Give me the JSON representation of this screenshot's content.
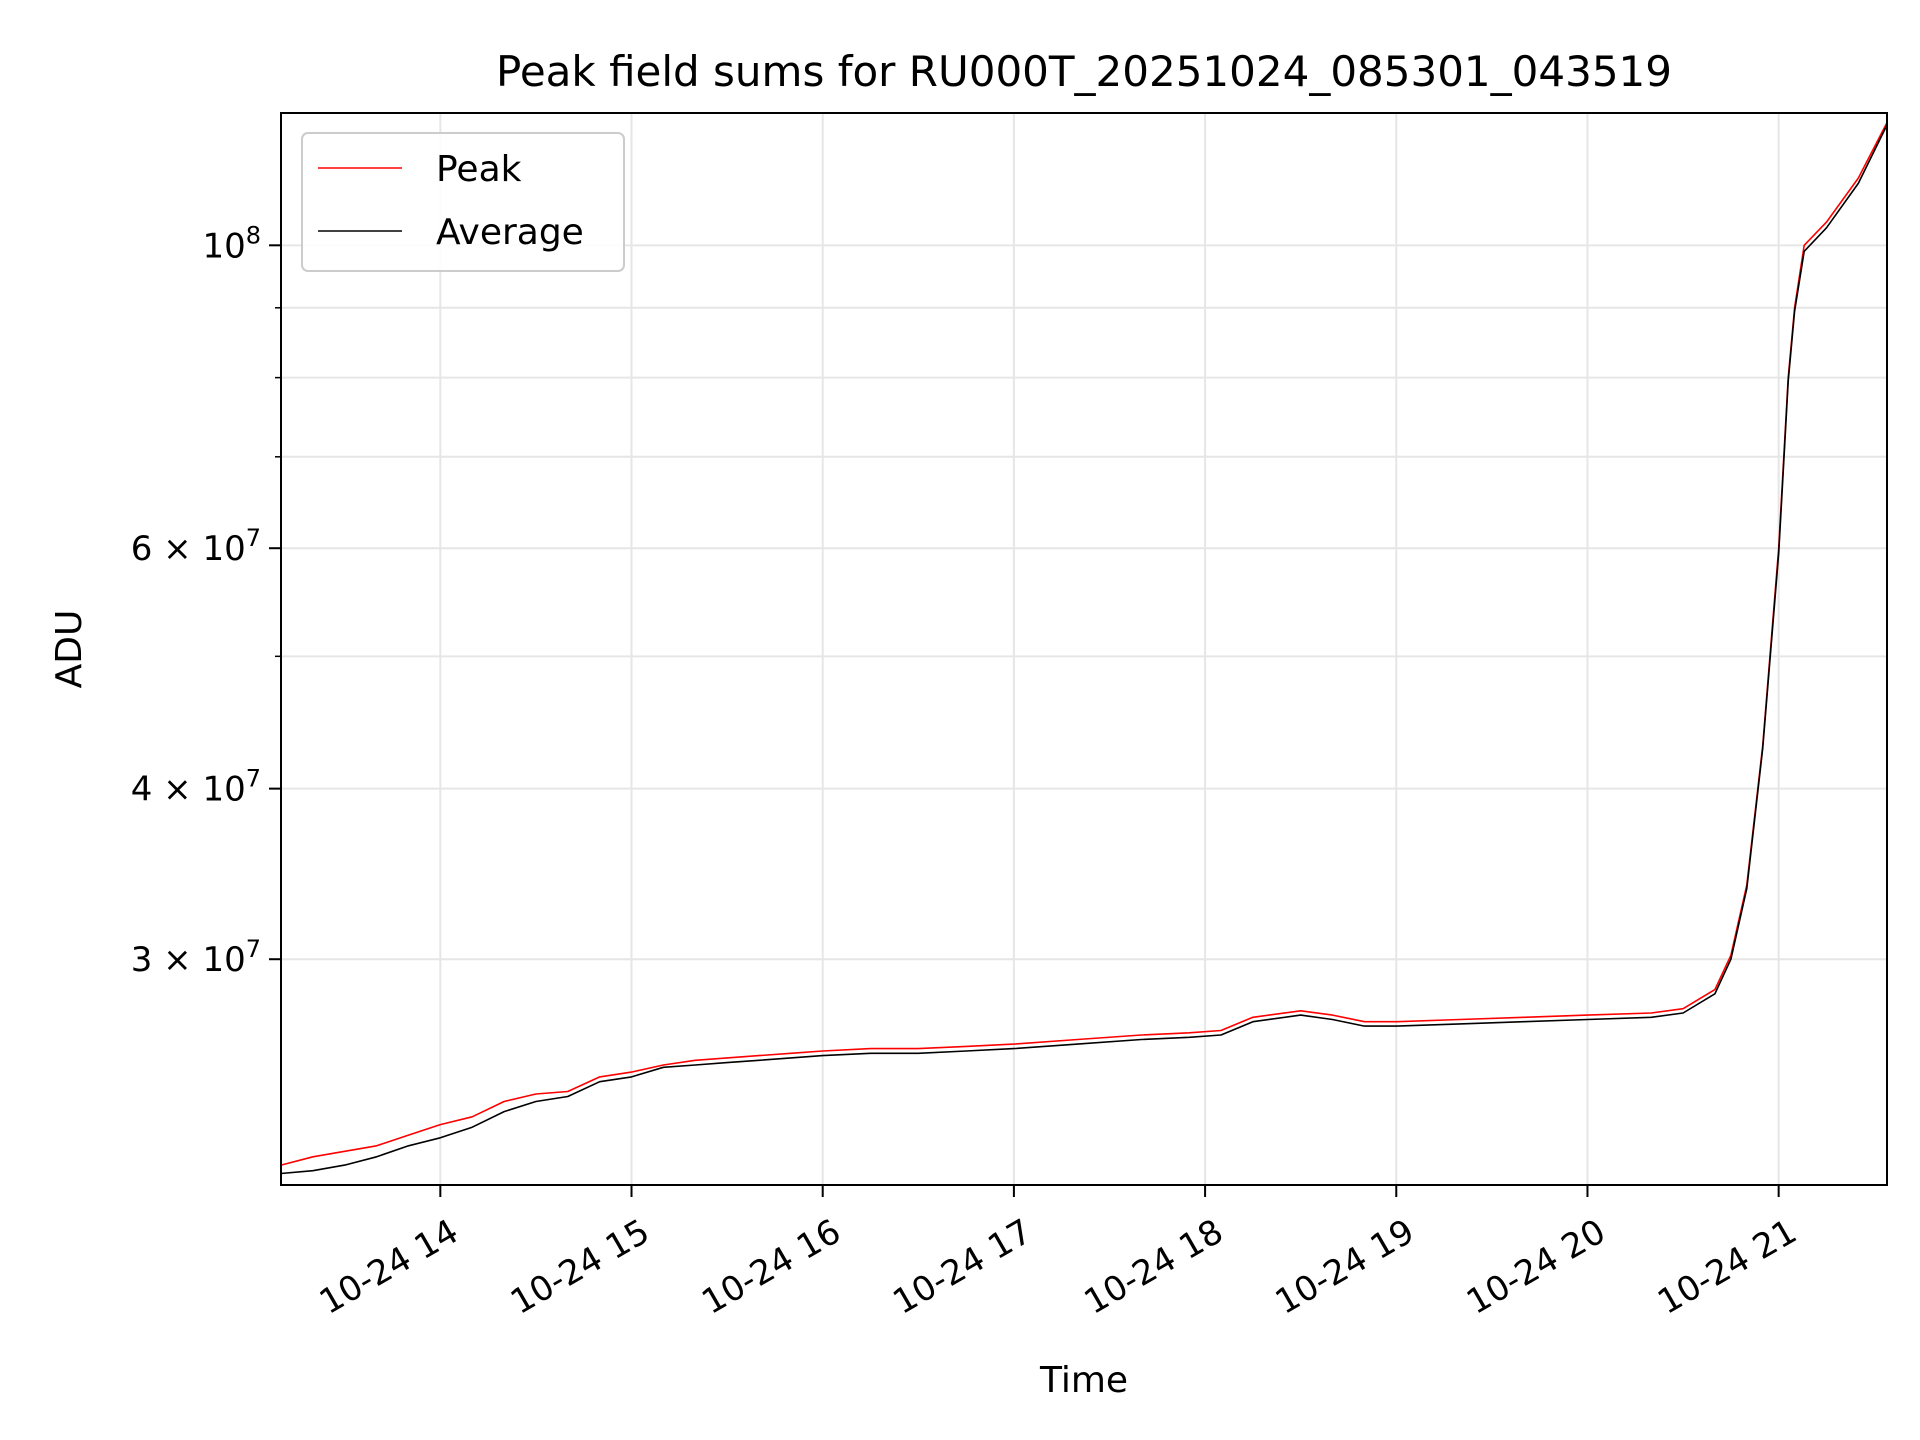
{
  "chart_data": {
    "type": "line",
    "title": "Peak field sums for RU000T_20251024_085301_043519",
    "xlabel": "Time",
    "ylabel": "ADU",
    "x_scale": "time",
    "y_scale": "log",
    "xlim": [
      "2025-10-24 13:10",
      "2025-10-24 21:34"
    ],
    "ylim": [
      20500000,
      125000000
    ],
    "x_ticks": [
      {
        "value": "2025-10-24 14:00",
        "label": "10-24 14"
      },
      {
        "value": "2025-10-24 15:00",
        "label": "10-24 15"
      },
      {
        "value": "2025-10-24 16:00",
        "label": "10-24 16"
      },
      {
        "value": "2025-10-24 17:00",
        "label": "10-24 17"
      },
      {
        "value": "2025-10-24 18:00",
        "label": "10-24 18"
      },
      {
        "value": "2025-10-24 19:00",
        "label": "10-24 19"
      },
      {
        "value": "2025-10-24 20:00",
        "label": "10-24 20"
      },
      {
        "value": "2025-10-24 21:00",
        "label": "10-24 21"
      }
    ],
    "y_ticks": [
      {
        "value": 30000000,
        "mantissa": "3",
        "exponent": "7"
      },
      {
        "value": 40000000,
        "mantissa": "4",
        "exponent": "7"
      },
      {
        "value": 60000000,
        "mantissa": "6",
        "exponent": "7"
      },
      {
        "value": 100000000,
        "mantissa": "",
        "exponent": "8"
      }
    ],
    "y_minor_ticks": [
      50000000,
      70000000,
      80000000,
      90000000
    ],
    "grid": true,
    "legend": {
      "position": "upper-left"
    },
    "series": [
      {
        "name": "Peak",
        "color": "#ff0000",
        "points": [
          [
            "2025-10-24 13:10",
            21200000
          ],
          [
            "2025-10-24 13:20",
            21500000
          ],
          [
            "2025-10-24 13:30",
            21700000
          ],
          [
            "2025-10-24 13:40",
            21900000
          ],
          [
            "2025-10-24 13:50",
            22300000
          ],
          [
            "2025-10-24 14:00",
            22700000
          ],
          [
            "2025-10-24 14:10",
            23000000
          ],
          [
            "2025-10-24 14:20",
            23600000
          ],
          [
            "2025-10-24 14:30",
            23900000
          ],
          [
            "2025-10-24 14:40",
            24000000
          ],
          [
            "2025-10-24 14:50",
            24600000
          ],
          [
            "2025-10-24 15:00",
            24800000
          ],
          [
            "2025-10-24 15:10",
            25100000
          ],
          [
            "2025-10-24 15:20",
            25300000
          ],
          [
            "2025-10-24 15:30",
            25400000
          ],
          [
            "2025-10-24 15:40",
            25500000
          ],
          [
            "2025-10-24 15:50",
            25600000
          ],
          [
            "2025-10-24 16:00",
            25700000
          ],
          [
            "2025-10-24 16:15",
            25800000
          ],
          [
            "2025-10-24 16:30",
            25800000
          ],
          [
            "2025-10-24 16:45",
            25900000
          ],
          [
            "2025-10-24 17:00",
            26000000
          ],
          [
            "2025-10-24 17:20",
            26200000
          ],
          [
            "2025-10-24 17:40",
            26400000
          ],
          [
            "2025-10-24 17:55",
            26500000
          ],
          [
            "2025-10-24 18:05",
            26600000
          ],
          [
            "2025-10-24 18:15",
            27200000
          ],
          [
            "2025-10-24 18:30",
            27500000
          ],
          [
            "2025-10-24 18:40",
            27300000
          ],
          [
            "2025-10-24 18:50",
            27000000
          ],
          [
            "2025-10-24 19:00",
            27000000
          ],
          [
            "2025-10-24 19:20",
            27100000
          ],
          [
            "2025-10-24 19:40",
            27200000
          ],
          [
            "2025-10-24 20:00",
            27300000
          ],
          [
            "2025-10-24 20:20",
            27400000
          ],
          [
            "2025-10-24 20:30",
            27600000
          ],
          [
            "2025-10-24 20:40",
            28500000
          ],
          [
            "2025-10-24 20:45",
            30200000
          ],
          [
            "2025-10-24 20:50",
            34000000
          ],
          [
            "2025-10-24 20:55",
            43000000
          ],
          [
            "2025-10-24 21:00",
            60000000
          ],
          [
            "2025-10-24 21:03",
            80000000
          ],
          [
            "2025-10-24 21:05",
            90000000
          ],
          [
            "2025-10-24 21:08",
            100000000
          ],
          [
            "2025-10-24 21:15",
            104000000
          ],
          [
            "2025-10-24 21:25",
            112000000
          ],
          [
            "2025-10-24 21:34",
            123000000
          ]
        ]
      },
      {
        "name": "Average",
        "color": "#000000",
        "points": [
          [
            "2025-10-24 13:10",
            20900000
          ],
          [
            "2025-10-24 13:20",
            21000000
          ],
          [
            "2025-10-24 13:30",
            21200000
          ],
          [
            "2025-10-24 13:40",
            21500000
          ],
          [
            "2025-10-24 13:50",
            21900000
          ],
          [
            "2025-10-24 14:00",
            22200000
          ],
          [
            "2025-10-24 14:10",
            22600000
          ],
          [
            "2025-10-24 14:20",
            23200000
          ],
          [
            "2025-10-24 14:30",
            23600000
          ],
          [
            "2025-10-24 14:40",
            23800000
          ],
          [
            "2025-10-24 14:50",
            24400000
          ],
          [
            "2025-10-24 15:00",
            24600000
          ],
          [
            "2025-10-24 15:10",
            25000000
          ],
          [
            "2025-10-24 15:20",
            25100000
          ],
          [
            "2025-10-24 15:30",
            25200000
          ],
          [
            "2025-10-24 15:40",
            25300000
          ],
          [
            "2025-10-24 15:50",
            25400000
          ],
          [
            "2025-10-24 16:00",
            25500000
          ],
          [
            "2025-10-24 16:15",
            25600000
          ],
          [
            "2025-10-24 16:30",
            25600000
          ],
          [
            "2025-10-24 16:45",
            25700000
          ],
          [
            "2025-10-24 17:00",
            25800000
          ],
          [
            "2025-10-24 17:20",
            26000000
          ],
          [
            "2025-10-24 17:40",
            26200000
          ],
          [
            "2025-10-24 17:55",
            26300000
          ],
          [
            "2025-10-24 18:05",
            26400000
          ],
          [
            "2025-10-24 18:15",
            27000000
          ],
          [
            "2025-10-24 18:30",
            27300000
          ],
          [
            "2025-10-24 18:40",
            27100000
          ],
          [
            "2025-10-24 18:50",
            26800000
          ],
          [
            "2025-10-24 19:00",
            26800000
          ],
          [
            "2025-10-24 19:20",
            26900000
          ],
          [
            "2025-10-24 19:40",
            27000000
          ],
          [
            "2025-10-24 20:00",
            27100000
          ],
          [
            "2025-10-24 20:20",
            27200000
          ],
          [
            "2025-10-24 20:30",
            27400000
          ],
          [
            "2025-10-24 20:40",
            28300000
          ],
          [
            "2025-10-24 20:45",
            30000000
          ],
          [
            "2025-10-24 20:50",
            33800000
          ],
          [
            "2025-10-24 20:55",
            42800000
          ],
          [
            "2025-10-24 21:00",
            59500000
          ],
          [
            "2025-10-24 21:03",
            79500000
          ],
          [
            "2025-10-24 21:05",
            89500000
          ],
          [
            "2025-10-24 21:08",
            99000000
          ],
          [
            "2025-10-24 21:15",
            103000000
          ],
          [
            "2025-10-24 21:25",
            111000000
          ],
          [
            "2025-10-24 21:34",
            122500000
          ]
        ]
      }
    ]
  }
}
